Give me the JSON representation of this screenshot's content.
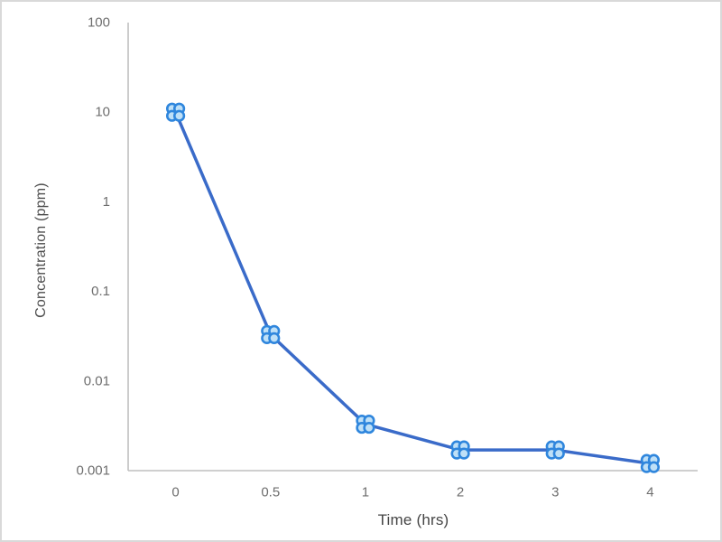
{
  "chart_data": {
    "type": "line",
    "title": "",
    "xlabel": "Time (hrs)",
    "ylabel": "Concentration (ppm)",
    "x_axis_type": "category",
    "x_categories": [
      "0",
      "0.5",
      "1",
      "2",
      "3",
      "4"
    ],
    "series": [
      {
        "name": "Concentration",
        "values": [
          10,
          0.033,
          0.0033,
          0.0017,
          0.0017,
          0.0012
        ]
      }
    ],
    "y_scale": "log",
    "ylim": [
      0.001,
      100
    ],
    "y_ticks": [
      100,
      10,
      1,
      0.1,
      0.01,
      0.001
    ],
    "y_tick_labels": [
      "100",
      "10",
      "1",
      "0.1",
      "0.01",
      "0.001"
    ],
    "grid": false,
    "legend": "none",
    "marker_style": "four-circle-cluster",
    "colors": {
      "line": "#3a6bc9",
      "marker_fill": "#bfe0f7",
      "marker_stroke": "#2f86dd",
      "axis_line": "#bfbfbf",
      "tick_text": "#6e6e6e",
      "title_text": "#4d4d4d",
      "background": "#ffffff",
      "border": "#d9d9d9"
    }
  }
}
